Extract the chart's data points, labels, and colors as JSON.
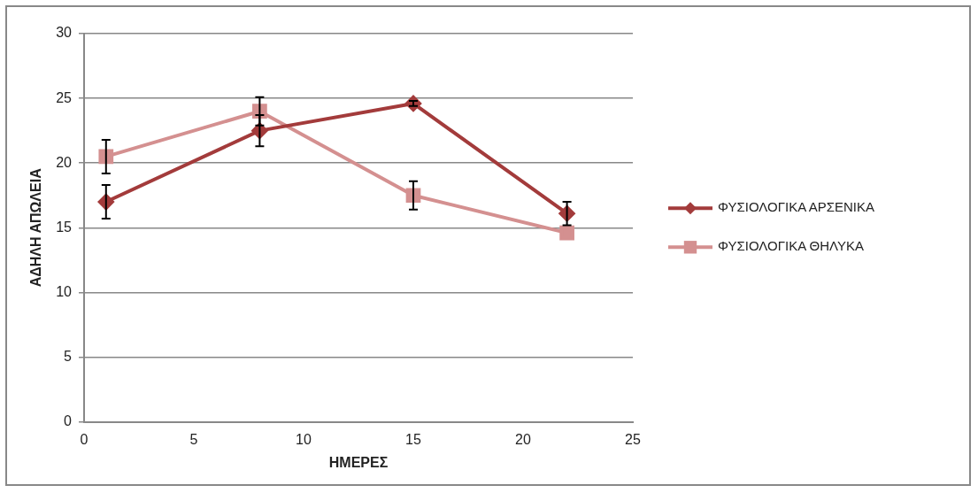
{
  "chart_data": {
    "type": "line",
    "xlabel": "ΗΜΕΡΕΣ",
    "ylabel": "ΑΔΗΛΗ ΑΠΩΛΕΙΑ",
    "x": [
      1,
      8,
      15,
      22
    ],
    "xlim": [
      0,
      25
    ],
    "xticks": [
      0,
      5,
      10,
      15,
      20,
      25
    ],
    "ylim": [
      0,
      30
    ],
    "yticks": [
      0,
      5,
      10,
      15,
      20,
      25,
      30
    ],
    "grid": "y",
    "legend": "right",
    "series": [
      {
        "name": "ΦΥΣΙΟΛΟΓΙΚΑ ΑΡΣΕΝΙΚΑ",
        "color": "#a33b3b",
        "marker": "diamond",
        "values": [
          17,
          22.5,
          24.6,
          16.1
        ],
        "errors": [
          1.3,
          1.2,
          0.2,
          0.9
        ]
      },
      {
        "name": "ΦΥΣΙΟΛΟΓΙΚΑ ΘΗΛΥΚΑ",
        "color": "#d49090",
        "marker": "square",
        "values": [
          20.5,
          24,
          17.5,
          14.6
        ],
        "errors": [
          1.3,
          1.1,
          1.1,
          null
        ]
      }
    ]
  }
}
